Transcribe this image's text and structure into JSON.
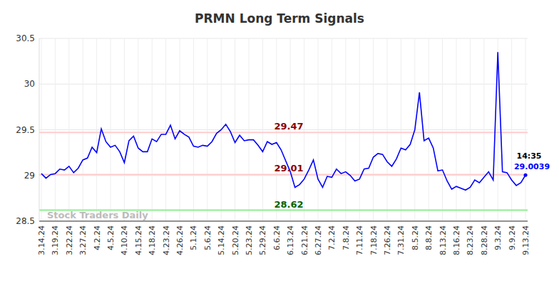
{
  "chart_data": {
    "type": "line",
    "title": "PRMN Long Term Signals",
    "x": [
      "3.14.24",
      null,
      null,
      "3.19.24",
      null,
      null,
      "3.22.24",
      null,
      null,
      "3.27.24",
      null,
      null,
      "4.2.24",
      null,
      null,
      "4.5.24",
      null,
      null,
      "4.10.24",
      null,
      null,
      "4.15.24",
      null,
      null,
      "4.18.24",
      null,
      null,
      "4.23.24",
      null,
      null,
      "4.26.24",
      null,
      null,
      "5.1.24",
      null,
      null,
      "5.6.24",
      null,
      null,
      "5.14.24",
      null,
      null,
      "5.20.24",
      null,
      null,
      "5.23.24",
      null,
      null,
      "5.29.24",
      null,
      null,
      "6.6.24",
      null,
      null,
      "6.13.24",
      null,
      null,
      "6.21.24",
      null,
      null,
      "6.27.24",
      null,
      null,
      "7.2.24",
      null,
      null,
      "7.8.24",
      null,
      null,
      "7.11.24",
      null,
      null,
      "7.18.24",
      null,
      null,
      "7.26.24",
      null,
      null,
      "7.31.24",
      null,
      null,
      "8.5.24",
      null,
      null,
      "8.8.24",
      null,
      null,
      "8.13.24",
      null,
      null,
      "8.16.24",
      null,
      null,
      "8.23.24",
      null,
      null,
      "8.28.24",
      null,
      null,
      "9.3.24",
      null,
      null,
      "9.9.24",
      null,
      null,
      "9.13.24"
    ],
    "series": [
      {
        "name": "PRMN",
        "color": "#0000ff",
        "values": [
          29.02,
          28.97,
          29.01,
          29.02,
          29.07,
          29.06,
          29.1,
          29.03,
          29.08,
          29.17,
          29.19,
          29.31,
          29.25,
          29.51,
          29.37,
          29.31,
          29.33,
          29.26,
          29.14,
          29.38,
          29.43,
          29.3,
          29.26,
          29.26,
          29.4,
          29.37,
          29.45,
          29.45,
          29.55,
          29.4,
          29.49,
          29.45,
          29.42,
          29.32,
          29.31,
          29.33,
          29.32,
          29.37,
          29.46,
          29.5,
          29.56,
          29.48,
          29.36,
          29.44,
          29.38,
          29.39,
          29.39,
          29.33,
          29.26,
          29.37,
          29.34,
          29.36,
          29.28,
          29.16,
          29.04,
          28.87,
          28.9,
          28.96,
          29.06,
          29.17,
          28.96,
          28.87,
          28.99,
          28.98,
          29.07,
          29.02,
          29.04,
          29.0,
          28.94,
          28.96,
          29.07,
          29.08,
          29.2,
          29.24,
          29.23,
          29.15,
          29.1,
          29.18,
          29.3,
          29.28,
          29.34,
          29.5,
          29.91,
          29.38,
          29.41,
          29.3,
          29.05,
          29.06,
          28.94,
          28.85,
          28.88,
          28.86,
          28.84,
          28.87,
          28.95,
          28.92,
          28.98,
          29.04,
          28.95,
          30.35,
          29.04,
          29.03,
          28.95,
          28.89,
          28.92,
          29.0039
        ]
      }
    ],
    "ylim": [
      28.5,
      30.5
    ],
    "yticks": [
      28.5,
      29,
      29.5,
      30,
      30.5
    ],
    "grid": true,
    "lines": [
      {
        "value": 29.47,
        "label": "29.47",
        "color": "#8b0000"
      },
      {
        "value": 29.01,
        "label": "29.01",
        "color": "#8b0000"
      },
      {
        "value": 28.62,
        "label": "28.62",
        "color": "#006400"
      }
    ],
    "annotations": [
      {
        "label": "14:35"
      },
      {
        "label": "29.0039",
        "value": 29.0039
      }
    ],
    "watermark": "Stock Traders Daily"
  }
}
